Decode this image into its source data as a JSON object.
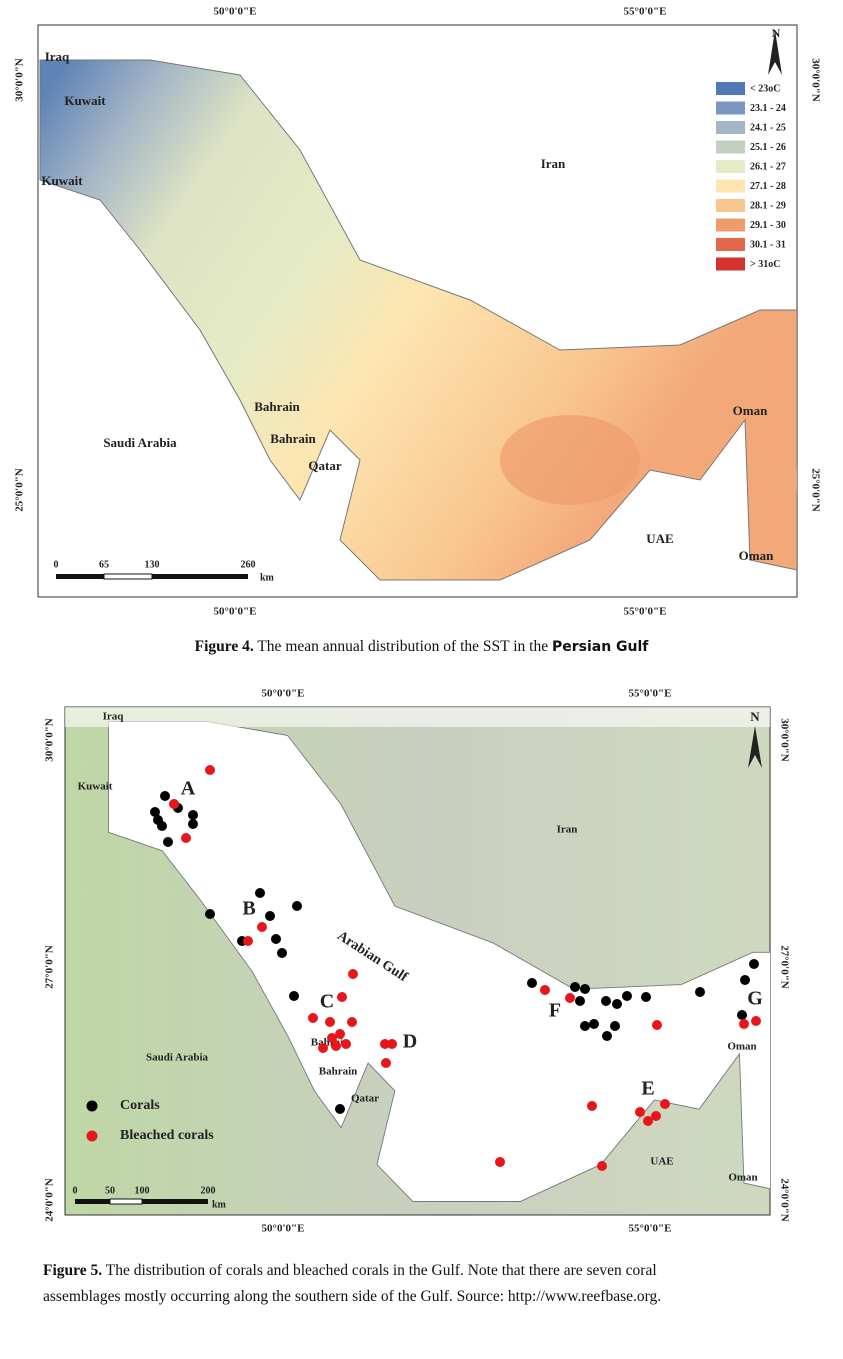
{
  "figure4": {
    "coords": {
      "top": [
        "50°0'0\"E",
        "55°0'0\"E"
      ],
      "bottom": [
        "50°0'0\"E",
        "55°0'0\"E"
      ],
      "left": [
        "30°0'0\"N",
        "25°0'0\"N"
      ],
      "right": [
        "30°0'0\"N",
        "25°0'0\"N"
      ]
    },
    "places": [
      "Iraq",
      "Kuwait",
      "Kuwait",
      "Iran",
      "Saudi Arabia",
      "Bahrain",
      "Bahrain",
      "Qatar",
      "Oman",
      "UAE",
      "Oman"
    ],
    "north": "N",
    "legend": [
      {
        "label": "< 23oC",
        "color": "#4f79b4"
      },
      {
        "label": "23.1 - 24",
        "color": "#7b97bf"
      },
      {
        "label": "24.1 - 25",
        "color": "#a4b6c6"
      },
      {
        "label": "25.1 - 26",
        "color": "#c3cfc0"
      },
      {
        "label": "26.1 - 27",
        "color": "#e6ebc6"
      },
      {
        "label": "27.1 - 28",
        "color": "#fde6b1"
      },
      {
        "label": "28.1 - 29",
        "color": "#f9c690"
      },
      {
        "label": "29.1 - 30",
        "color": "#ef9c6c"
      },
      {
        "label": "30.1 - 31",
        "color": "#e3684b"
      },
      {
        "label": "> 31oC",
        "color": "#d2342d"
      }
    ],
    "scale": [
      "0",
      "65",
      "130",
      "260",
      "km"
    ],
    "caption": {
      "label": "Figure 4.",
      "text": "The mean annual distribution of the SST in the",
      "emphasis": "Persian Gulf"
    }
  },
  "figure5": {
    "coords": {
      "top": [
        "50°0'0\"E",
        "55°0'0\"E"
      ],
      "bottom": [
        "50°0'0\"E",
        "55°0'0\"E"
      ],
      "left": [
        "30°0'0\"N",
        "27°0'0\"N",
        "24°0'0\"N"
      ],
      "right": [
        "30°0'0\"N",
        "27°0'0\"N",
        "24°0'0\"N"
      ]
    },
    "places": [
      "Iraq",
      "Kuwait",
      "Iran",
      "Saudi Arabia",
      "Bahrain",
      "Bahrain",
      "Qatar",
      "Oman",
      "UAE",
      "Oman"
    ],
    "sea": "Arabian Gulf",
    "sites": [
      "A",
      "B",
      "C",
      "D",
      "E",
      "F",
      "G"
    ],
    "north": "N",
    "legend": [
      {
        "label": "Corals",
        "color": "#000000"
      },
      {
        "label": "Bleached corals",
        "color": "#e8161b"
      }
    ],
    "scale": [
      "0",
      "50",
      "100",
      "200",
      "km"
    ],
    "caption": {
      "label": "Figure 5.",
      "lines": [
        "The distribution of corals and bleached corals in the Gulf. Note that there are seven coral",
        "assemblages mostly occurring along the southern side of the Gulf. Source: http://www.reefbase.org."
      ]
    }
  }
}
